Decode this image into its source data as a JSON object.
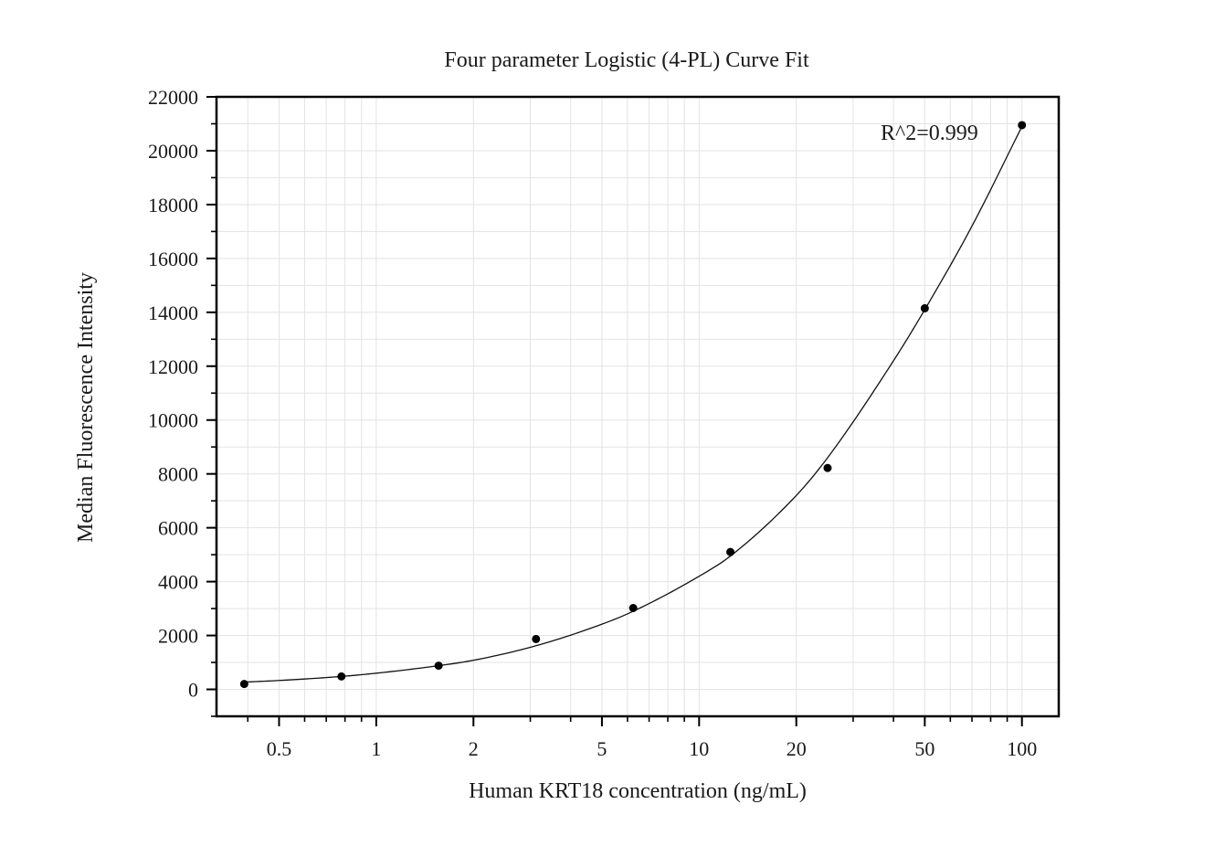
{
  "chart_data": {
    "type": "scatter",
    "title": "Four parameter Logistic (4-PL) Curve Fit",
    "xlabel": "Human KRT18 concentration (ng/mL)",
    "ylabel": "Median Fluorescence Intensity",
    "x_scale": "log",
    "xlim": [
      0.32,
      130
    ],
    "ylim": [
      -1000,
      22000
    ],
    "x_ticks": [
      0.5,
      1,
      2,
      5,
      10,
      20,
      50,
      100
    ],
    "x_tick_labels": [
      "0.5",
      "1",
      "2",
      "5",
      "10",
      "20",
      "50",
      "100"
    ],
    "y_ticks": [
      0,
      2000,
      4000,
      6000,
      8000,
      10000,
      12000,
      14000,
      16000,
      18000,
      20000,
      22000
    ],
    "y_tick_labels": [
      "0",
      "2000",
      "4000",
      "6000",
      "8000",
      "10000",
      "12000",
      "14000",
      "16000",
      "18000",
      "20000",
      "22000"
    ],
    "grid": true,
    "annotation": "R^2=0.999",
    "series": [
      {
        "type": "scatter",
        "x": [
          0.39,
          0.78,
          1.56,
          3.125,
          6.25,
          12.5,
          25,
          50,
          100
        ],
        "y": [
          200,
          480,
          880,
          1870,
          3020,
          5100,
          8220,
          14150,
          20950
        ]
      },
      {
        "type": "line",
        "x": [
          0.39,
          0.5,
          0.78,
          1,
          1.56,
          2,
          3.125,
          5,
          6.25,
          10,
          12.5,
          20,
          25,
          40,
          50,
          70,
          100
        ],
        "y": [
          270,
          330,
          480,
          600,
          880,
          1080,
          1620,
          2420,
          2900,
          4200,
          4950,
          7200,
          8600,
          12200,
          14100,
          17200,
          20900
        ]
      }
    ]
  }
}
